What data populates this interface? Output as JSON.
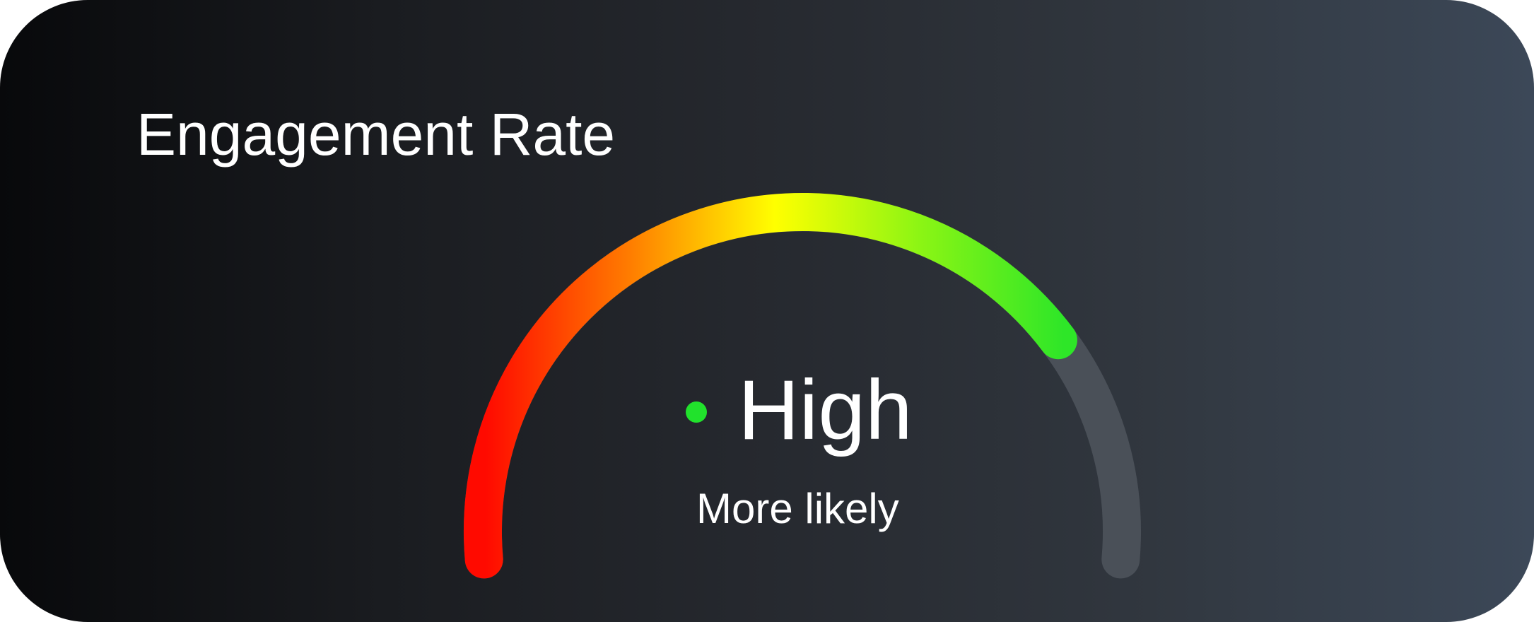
{
  "widget": {
    "title": "Engagement Rate",
    "status": {
      "label": "High",
      "description": "More likely",
      "dot_color": "#21e22c"
    },
    "gauge": {
      "value_fraction": 0.78,
      "gradient_colors": [
        "#ff0a00",
        "#ff7d00",
        "#ffff00",
        "#8cf514",
        "#2ee628"
      ],
      "track_color": "#4a5058"
    }
  }
}
